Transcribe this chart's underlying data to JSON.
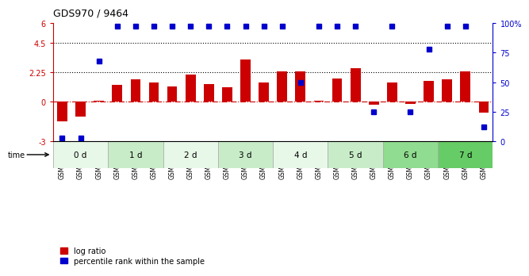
{
  "title": "GDS970 / 9464",
  "samples": [
    "GSM21882",
    "GSM21883",
    "GSM21884",
    "GSM21885",
    "GSM21886",
    "GSM21887",
    "GSM21888",
    "GSM21889",
    "GSM21890",
    "GSM21891",
    "GSM21892",
    "GSM21893",
    "GSM21894",
    "GSM21895",
    "GSM21896",
    "GSM21897",
    "GSM21898",
    "GSM21899",
    "GSM21900",
    "GSM21901",
    "GSM21902",
    "GSM21903",
    "GSM21904",
    "GSM21905"
  ],
  "log_ratio": [
    -1.5,
    -1.1,
    0.1,
    1.3,
    1.7,
    1.5,
    1.2,
    2.1,
    1.35,
    1.1,
    3.2,
    1.45,
    2.3,
    2.3,
    0.1,
    1.8,
    2.55,
    -0.2,
    1.5,
    -0.15,
    1.6,
    1.7,
    2.3,
    -0.8
  ],
  "percentile_rank": [
    3,
    3,
    68,
    97,
    97,
    97,
    97,
    97,
    97,
    97,
    97,
    97,
    97,
    50,
    97,
    97,
    97,
    25,
    97,
    25,
    78,
    97,
    97,
    12
  ],
  "time_groups": [
    {
      "label": "0 d",
      "start": 0,
      "end": 3,
      "color": "#e8f8e8"
    },
    {
      "label": "1 d",
      "start": 3,
      "end": 6,
      "color": "#c8ecc8"
    },
    {
      "label": "2 d",
      "start": 6,
      "end": 9,
      "color": "#e8f8e8"
    },
    {
      "label": "3 d",
      "start": 9,
      "end": 12,
      "color": "#c8ecc8"
    },
    {
      "label": "4 d",
      "start": 12,
      "end": 15,
      "color": "#e8f8e8"
    },
    {
      "label": "5 d",
      "start": 15,
      "end": 18,
      "color": "#c8ecc8"
    },
    {
      "label": "6 d",
      "start": 18,
      "end": 21,
      "color": "#90dc90"
    },
    {
      "label": "7 d",
      "start": 21,
      "end": 24,
      "color": "#66cc66"
    }
  ],
  "ylim_left": [
    -3,
    6
  ],
  "ylim_right": [
    0,
    100
  ],
  "yticks_left": [
    -3,
    0,
    2.25,
    4.5,
    6
  ],
  "yticks_right": [
    0,
    25,
    50,
    75,
    100
  ],
  "ytick_labels_left": [
    "-3",
    "0",
    "2.25",
    "4.5",
    "6"
  ],
  "ytick_labels_right": [
    "0",
    "25",
    "50",
    "75",
    "100%"
  ],
  "hlines": [
    2.25,
    4.5
  ],
  "bar_color_red": "#cc0000",
  "bar_color_blue": "#0000cc",
  "legend_red": "log ratio",
  "legend_blue": "percentile rank within the sample",
  "bg_color": "#ffffff"
}
